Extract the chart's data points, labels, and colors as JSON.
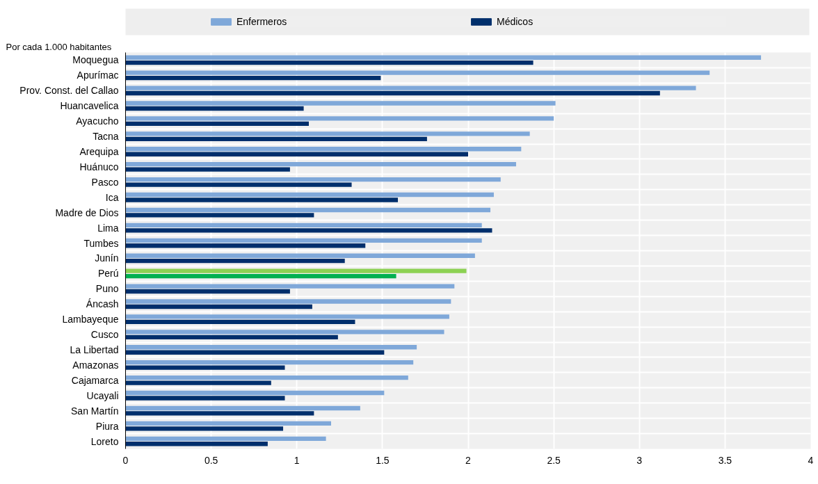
{
  "chart_data": {
    "type": "bar",
    "orientation": "horizontal",
    "annotations": [
      "Por cada 1.000 habitantes"
    ],
    "categories": [
      "Moquegua",
      "Apurímac",
      "Prov. Const. del Callao",
      "Huancavelica",
      "Ayacucho",
      "Tacna",
      "Arequipa",
      "Huánuco",
      "Pasco",
      "Ica",
      "Madre de Dios",
      "Lima",
      "Tumbes",
      "Junín",
      "Perú",
      "Puno",
      "Áncash",
      "Lambayeque",
      "Cusco",
      "La Libertad",
      "Amazonas",
      "Cajamarca",
      "Ucayali",
      "San Martín",
      "Piura",
      "Loreto"
    ],
    "series": [
      {
        "name": "Enfermeros",
        "color": "#7fa8d9",
        "colors": [
          "#7fa8d9",
          "#7fa8d9",
          "#7fa8d9",
          "#7fa8d9",
          "#7fa8d9",
          "#7fa8d9",
          "#7fa8d9",
          "#7fa8d9",
          "#7fa8d9",
          "#7fa8d9",
          "#7fa8d9",
          "#7fa8d9",
          "#7fa8d9",
          "#7fa8d9",
          "#8cd153",
          "#7fa8d9",
          "#7fa8d9",
          "#7fa8d9",
          "#7fa8d9",
          "#7fa8d9",
          "#7fa8d9",
          "#7fa8d9",
          "#7fa8d9",
          "#7fa8d9",
          "#7fa8d9",
          "#7fa8d9"
        ],
        "values": [
          3.71,
          3.41,
          3.33,
          2.51,
          2.5,
          2.36,
          2.31,
          2.28,
          2.19,
          2.15,
          2.13,
          2.08,
          2.08,
          2.04,
          1.99,
          1.92,
          1.9,
          1.89,
          1.86,
          1.7,
          1.68,
          1.65,
          1.51,
          1.37,
          1.2,
          1.17
        ]
      },
      {
        "name": "Médicos",
        "color": "#002f6c",
        "colors": [
          "#002f6c",
          "#002f6c",
          "#002f6c",
          "#002f6c",
          "#002f6c",
          "#002f6c",
          "#002f6c",
          "#002f6c",
          "#002f6c",
          "#002f6c",
          "#002f6c",
          "#002f6c",
          "#002f6c",
          "#002f6c",
          "#00b050",
          "#002f6c",
          "#002f6c",
          "#002f6c",
          "#002f6c",
          "#002f6c",
          "#002f6c",
          "#002f6c",
          "#002f6c",
          "#002f6c",
          "#002f6c",
          "#002f6c"
        ],
        "values": [
          2.38,
          1.49,
          3.12,
          1.04,
          1.07,
          1.76,
          2.0,
          0.96,
          1.32,
          1.59,
          1.1,
          2.14,
          1.4,
          1.28,
          1.58,
          0.96,
          1.09,
          1.34,
          1.24,
          1.51,
          0.93,
          0.85,
          0.93,
          1.1,
          0.92,
          0.83
        ]
      }
    ],
    "xlim": [
      0,
      4
    ],
    "xticks": [
      0,
      0.5,
      1,
      1.5,
      2,
      2.5,
      3,
      3.5,
      4
    ],
    "grid": true,
    "legend": "top"
  }
}
